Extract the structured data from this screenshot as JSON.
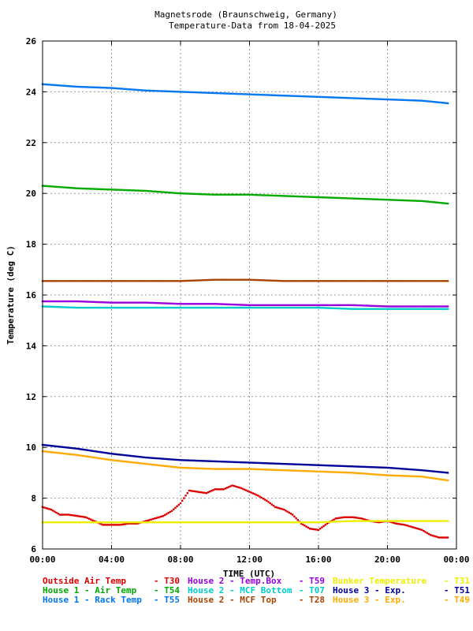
{
  "chart_data": {
    "type": "scatter",
    "title": "Magnetsrode (Braunschweig, Germany)",
    "subtitle": "Temperature-Data from 18-04-2025",
    "xlabel": "TIME (UTC)",
    "ylabel": "Temperature (deg C)",
    "xlim": [
      0,
      24
    ],
    "ylim": [
      6,
      26
    ],
    "x_ticks": [
      "00:00",
      "04:00",
      "08:00",
      "12:00",
      "16:00",
      "20:00",
      "00:00"
    ],
    "y_ticks": [
      "6",
      "8",
      "10",
      "12",
      "14",
      "16",
      "18",
      "20",
      "22",
      "24",
      "26"
    ],
    "grid": true,
    "legend_position": "bottom",
    "series": [
      {
        "name": "Outside Air Temp",
        "code": "T30",
        "color": "#dd0000",
        "x": [
          0,
          0.5,
          1,
          1.5,
          2,
          2.5,
          3,
          3.5,
          4,
          4.5,
          5,
          5.5,
          6,
          6.5,
          7,
          7.5,
          8,
          8.5,
          9,
          9.5,
          10,
          10.5,
          11,
          11.5,
          12,
          12.5,
          13,
          13.5,
          14,
          14.5,
          15,
          15.5,
          16,
          16.5,
          17,
          17.5,
          18,
          18.5,
          19,
          19.5,
          20,
          20.5,
          21,
          21.5,
          22,
          22.5,
          23,
          23.5
        ],
        "y": [
          7.65,
          7.55,
          7.35,
          7.35,
          7.3,
          7.25,
          7.1,
          6.95,
          6.95,
          6.95,
          7.0,
          7.0,
          7.1,
          7.2,
          7.3,
          7.5,
          7.8,
          8.3,
          8.25,
          8.2,
          8.35,
          8.35,
          8.5,
          8.4,
          8.25,
          8.1,
          7.9,
          7.65,
          7.55,
          7.35,
          7.0,
          6.8,
          6.75,
          7.0,
          7.2,
          7.25,
          7.25,
          7.2,
          7.1,
          7.05,
          7.1,
          7.0,
          6.95,
          6.85,
          6.75,
          6.55,
          6.45,
          6.45
        ]
      },
      {
        "name": "House 1 - Air  Temp",
        "code": "T54",
        "color": "#00aa00",
        "x": [
          0,
          2,
          4,
          6,
          8,
          10,
          12,
          14,
          16,
          18,
          20,
          22,
          23.5
        ],
        "y": [
          20.3,
          20.2,
          20.15,
          20.1,
          20.0,
          19.95,
          19.95,
          19.9,
          19.85,
          19.8,
          19.75,
          19.7,
          19.6
        ]
      },
      {
        "name": "House 1 - Rack Temp",
        "code": "T55",
        "color": "#0077ee",
        "x": [
          0,
          2,
          4,
          6,
          8,
          10,
          12,
          14,
          16,
          18,
          20,
          22,
          23.5
        ],
        "y": [
          24.3,
          24.2,
          24.15,
          24.05,
          24.0,
          23.95,
          23.9,
          23.85,
          23.8,
          23.75,
          23.7,
          23.65,
          23.55
        ]
      },
      {
        "name": "House 2 - Temp.Box",
        "code": "T59",
        "color": "#9900dd",
        "x": [
          0,
          2,
          4,
          6,
          8,
          10,
          12,
          14,
          16,
          18,
          20,
          22,
          23.5
        ],
        "y": [
          15.75,
          15.75,
          15.7,
          15.7,
          15.65,
          15.65,
          15.6,
          15.6,
          15.6,
          15.6,
          15.55,
          15.55,
          15.55
        ]
      },
      {
        "name": "House 2 - MCF Bottom",
        "code": "T07",
        "color": "#00cccc",
        "x": [
          0,
          2,
          4,
          6,
          8,
          10,
          12,
          14,
          16,
          18,
          20,
          22,
          23.5
        ],
        "y": [
          15.55,
          15.5,
          15.5,
          15.5,
          15.5,
          15.5,
          15.5,
          15.5,
          15.5,
          15.45,
          15.45,
          15.45,
          15.45
        ]
      },
      {
        "name": "House 2 - MCF Top",
        "code": "T28",
        "color": "#aa4400",
        "x": [
          0,
          2,
          4,
          6,
          8,
          10,
          12,
          14,
          16,
          18,
          20,
          22,
          23.5
        ],
        "y": [
          16.55,
          16.55,
          16.55,
          16.55,
          16.55,
          16.6,
          16.6,
          16.55,
          16.55,
          16.55,
          16.55,
          16.55,
          16.55
        ]
      },
      {
        "name": "Bunker Temperature",
        "code": "T31",
        "color": "#eeee00",
        "x": [
          0,
          2,
          4,
          6,
          8,
          10,
          12,
          14,
          16,
          18,
          20,
          22,
          23.5
        ],
        "y": [
          7.05,
          7.05,
          7.05,
          7.05,
          7.05,
          7.05,
          7.05,
          7.05,
          7.05,
          7.1,
          7.1,
          7.1,
          7.1
        ]
      },
      {
        "name": "House 3 - Exp.",
        "code": "T51",
        "color": "#000099",
        "x": [
          0,
          2,
          4,
          6,
          8,
          10,
          12,
          14,
          16,
          18,
          20,
          22,
          23.5
        ],
        "y": [
          10.1,
          9.95,
          9.75,
          9.6,
          9.5,
          9.45,
          9.4,
          9.35,
          9.3,
          9.25,
          9.2,
          9.1,
          9.0
        ]
      },
      {
        "name": "House 3 - Exp.",
        "code": "T49",
        "color": "#ffaa00",
        "x": [
          0,
          2,
          4,
          6,
          8,
          10,
          12,
          14,
          16,
          18,
          20,
          22,
          23.5
        ],
        "y": [
          9.85,
          9.7,
          9.5,
          9.35,
          9.2,
          9.15,
          9.15,
          9.1,
          9.05,
          9.0,
          8.9,
          8.85,
          8.7
        ]
      }
    ]
  },
  "legend_rows": [
    [
      0,
      3,
      6
    ],
    [
      1,
      4,
      7
    ],
    [
      2,
      5,
      8
    ]
  ]
}
